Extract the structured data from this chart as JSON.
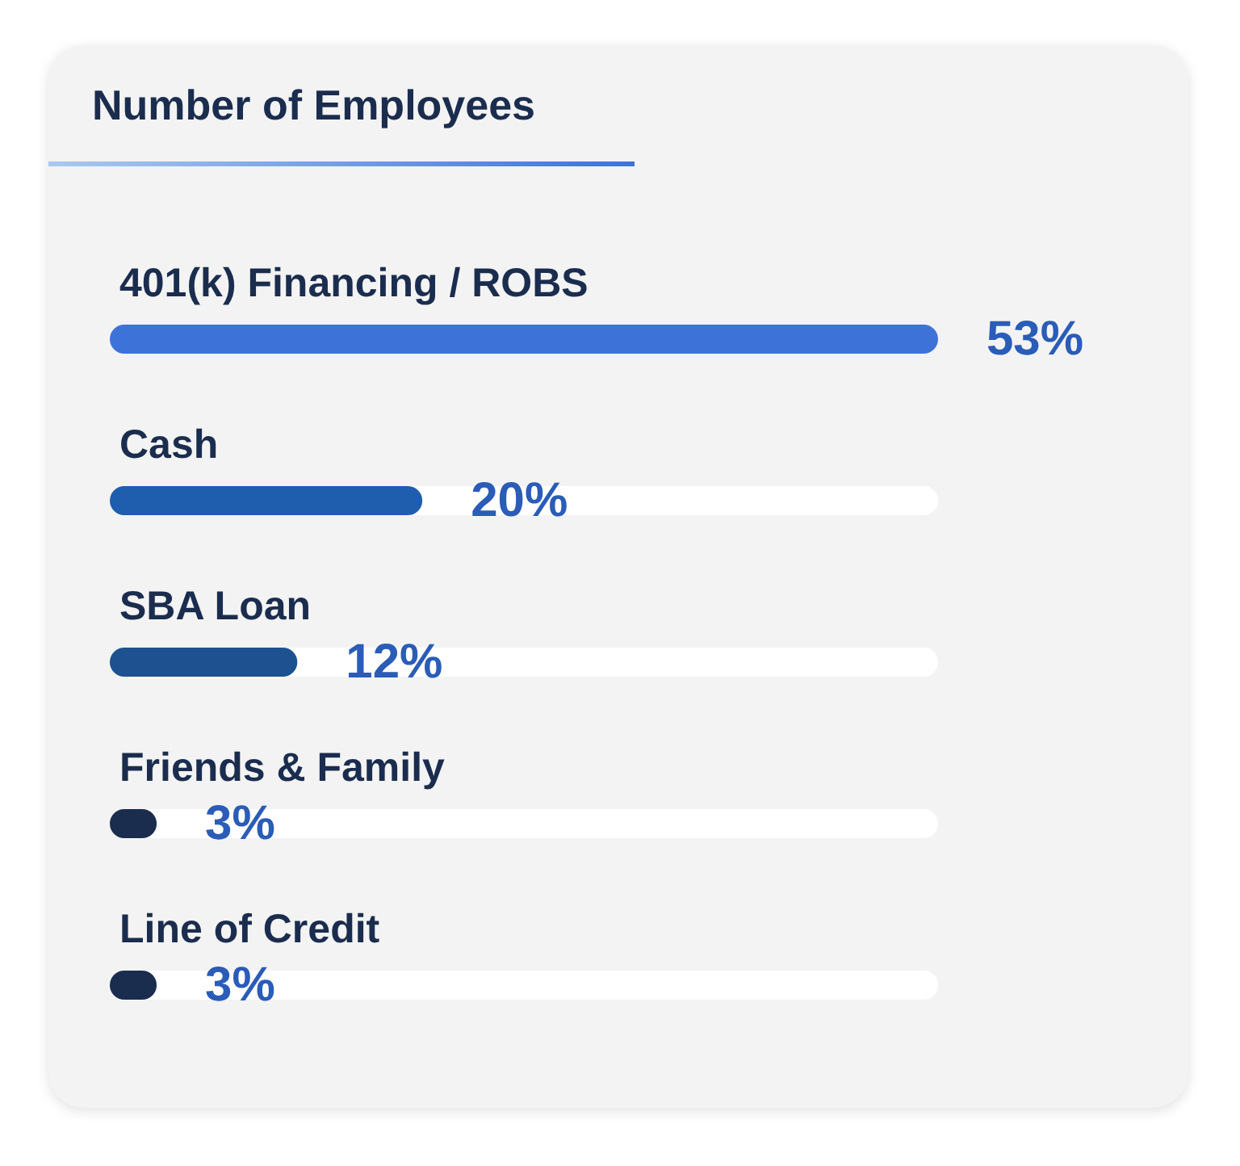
{
  "chart_data": {
    "type": "bar",
    "orientation": "horizontal",
    "title": "Number of Employees",
    "categories": [
      "401(k) Financing / ROBS",
      "Cash",
      "SBA Loan",
      "Friends & Family",
      "Line of Credit"
    ],
    "values": [
      53,
      20,
      12,
      3,
      3
    ],
    "colors": [
      "#3d73d9",
      "#1f5eae",
      "#1d5190",
      "#1b2d4e",
      "#1b2d4e"
    ],
    "value_labels": [
      "53%",
      "20%",
      "12%",
      "3%",
      "3%"
    ],
    "grid": false,
    "tick_labels": false
  }
}
